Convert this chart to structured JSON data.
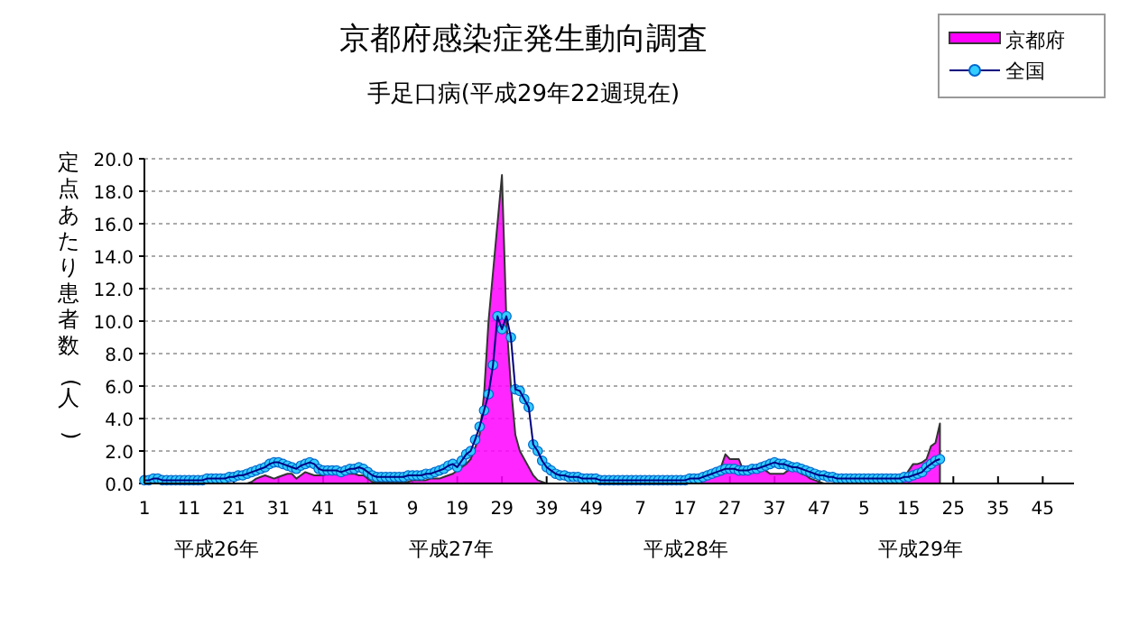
{
  "chart_data": {
    "type": "line",
    "title": "京都府感染症発生動向調査",
    "subtitle": "手足口病(平成29年22週現在)",
    "ylabel": "定点あたり患者数(人)",
    "categories": [
      "1",
      null,
      null,
      null,
      null,
      null,
      null,
      null,
      null,
      null,
      "11",
      null,
      null,
      null,
      null,
      null,
      null,
      null,
      null,
      null,
      "21",
      null,
      null,
      null,
      null,
      null,
      null,
      null,
      null,
      null,
      "31",
      null,
      null,
      null,
      null,
      null,
      null,
      null,
      null,
      null,
      "41",
      null,
      null,
      null,
      null,
      null,
      null,
      null,
      null,
      null,
      "51",
      null,
      null,
      null,
      null,
      null,
      null,
      null,
      null,
      null,
      "9",
      null,
      null,
      null,
      null,
      null,
      null,
      null,
      null,
      null,
      "19",
      null,
      null,
      null,
      null,
      null,
      null,
      null,
      null,
      null,
      "29",
      null,
      null,
      null,
      null,
      null,
      null,
      null,
      null,
      null,
      "39",
      null,
      null,
      null,
      null,
      null,
      null,
      null,
      null,
      null,
      "49",
      null,
      null,
      null,
      null,
      null,
      null,
      null,
      null,
      null,
      null,
      "7",
      null,
      null,
      null,
      null,
      null,
      null,
      null,
      null,
      null,
      "17",
      null,
      null,
      null,
      null,
      null,
      null,
      null,
      null,
      null,
      "27",
      null,
      null,
      null,
      null,
      null,
      null,
      null,
      null,
      null,
      "37",
      null,
      null,
      null,
      null,
      null,
      null,
      null,
      null,
      null,
      "47",
      null,
      null,
      null,
      null,
      null,
      null,
      null,
      null,
      null,
      "5",
      null,
      null,
      null,
      null,
      null,
      null,
      null,
      null,
      null,
      "15",
      null,
      null,
      null,
      null,
      null,
      null,
      null,
      null,
      null,
      "25",
      null,
      null,
      null,
      null,
      null,
      null,
      null,
      null,
      null,
      "35",
      null,
      null,
      null,
      null,
      null,
      null,
      null,
      null,
      null,
      "45",
      null,
      null,
      null,
      null,
      null,
      null,
      null
    ],
    "ylim": [
      0,
      20
    ],
    "yticks": [
      {
        "value": 0,
        "label": "0.0"
      },
      {
        "value": 2,
        "label": "2.0"
      },
      {
        "value": 4,
        "label": "4.0"
      },
      {
        "value": 6,
        "label": "6.0"
      },
      {
        "value": 8,
        "label": "8.0"
      },
      {
        "value": 10,
        "label": "10.0"
      },
      {
        "value": 12,
        "label": "12.0"
      },
      {
        "value": 14,
        "label": "14.0"
      },
      {
        "value": 16,
        "label": "16.0"
      },
      {
        "value": 18,
        "label": "18.0"
      },
      {
        "value": 20,
        "label": "20.0"
      }
    ],
    "grid": "y",
    "legend": "top right",
    "annotations": [
      "平成26年",
      "平成27年",
      "平成28年",
      "平成29年"
    ],
    "series": [
      {
        "name": "京都府",
        "type": "area",
        "color": "#ff00ff",
        "values": [
          0,
          0,
          0,
          0,
          0,
          0,
          0,
          0,
          0,
          0,
          0,
          0,
          0,
          0,
          0,
          0,
          0,
          0,
          0,
          0,
          0,
          0,
          0,
          0,
          0.1,
          0.3,
          0.4,
          0.5,
          0.4,
          0.3,
          0.4,
          0.5,
          0.6,
          0.6,
          0.3,
          0.5,
          0.7,
          0.6,
          0.5,
          0.5,
          0.5,
          0.6,
          0.6,
          0.6,
          0.6,
          0.6,
          0.6,
          0.6,
          0.5,
          0.5,
          0.3,
          0.1,
          0.1,
          0.1,
          0.1,
          0.1,
          0.1,
          0.1,
          0.1,
          0.1,
          0.2,
          0.2,
          0.2,
          0.2,
          0.3,
          0.3,
          0.3,
          0.4,
          0.5,
          0.6,
          0.8,
          1.0,
          1.2,
          1.5,
          2.2,
          3.0,
          5.5,
          10.0,
          13.0,
          16.0,
          19.0,
          10.0,
          6.0,
          3.0,
          2.0,
          1.5,
          1.0,
          0.5,
          0.2,
          0.1,
          0,
          0,
          0,
          0,
          0,
          0,
          0,
          0,
          0,
          0,
          0,
          0,
          0,
          0,
          0,
          0,
          0,
          0,
          0,
          0,
          0,
          0,
          0,
          0,
          0,
          0,
          0,
          0,
          0,
          0,
          0,
          0,
          0,
          0.1,
          0.1,
          0.2,
          0.3,
          0.4,
          0.5,
          1.0,
          1.8,
          1.5,
          1.5,
          1.5,
          0.8,
          0.8,
          0.8,
          0.9,
          1.2,
          0.8,
          0.6,
          0.6,
          0.6,
          0.6,
          0.8,
          1.0,
          0.8,
          0.6,
          0.5,
          0.3,
          0.2,
          0.1,
          0,
          0,
          0,
          0,
          0,
          0,
          0,
          0,
          0,
          0,
          0,
          0,
          0,
          0,
          0,
          0,
          0,
          0.1,
          0.3,
          0.8,
          1.2,
          1.2,
          1.3,
          1.5,
          2.3,
          2.5,
          3.7,
          null,
          null,
          null,
          null,
          null,
          null,
          null,
          null,
          null,
          null,
          null,
          null,
          null,
          null,
          null,
          null,
          null,
          null,
          null,
          null,
          null,
          null,
          null,
          null,
          null,
          null,
          null,
          null,
          null,
          null
        ]
      },
      {
        "name": "全国",
        "color": "#33ccff",
        "marker": "circle",
        "values": [
          0.2,
          0.2,
          0.3,
          0.3,
          0.2,
          0.2,
          0.2,
          0.2,
          0.2,
          0.2,
          0.2,
          0.2,
          0.2,
          0.2,
          0.3,
          0.3,
          0.3,
          0.3,
          0.3,
          0.4,
          0.4,
          0.5,
          0.5,
          0.6,
          0.7,
          0.8,
          0.9,
          1.0,
          1.2,
          1.3,
          1.3,
          1.2,
          1.1,
          1.0,
          0.9,
          1.1,
          1.2,
          1.3,
          1.2,
          0.9,
          0.8,
          0.8,
          0.8,
          0.8,
          0.7,
          0.8,
          0.9,
          0.9,
          1.0,
          0.9,
          0.7,
          0.5,
          0.4,
          0.4,
          0.4,
          0.4,
          0.4,
          0.4,
          0.4,
          0.5,
          0.5,
          0.5,
          0.5,
          0.6,
          0.6,
          0.7,
          0.8,
          0.9,
          1.1,
          1.2,
          1.0,
          1.4,
          1.8,
          2.0,
          2.7,
          3.5,
          4.5,
          5.5,
          7.3,
          10.3,
          9.5,
          10.3,
          9.0,
          5.8,
          5.7,
          5.2,
          4.7,
          2.4,
          2.0,
          1.4,
          1.0,
          0.8,
          0.6,
          0.5,
          0.5,
          0.4,
          0.4,
          0.4,
          0.3,
          0.3,
          0.3,
          0.3,
          0.2,
          0.2,
          0.2,
          0.2,
          0.2,
          0.2,
          0.2,
          0.2,
          0.2,
          0.2,
          0.2,
          0.2,
          0.2,
          0.2,
          0.2,
          0.2,
          0.2,
          0.2,
          0.2,
          0.2,
          0.3,
          0.3,
          0.3,
          0.4,
          0.5,
          0.6,
          0.7,
          0.8,
          0.9,
          0.9,
          0.9,
          0.8,
          0.8,
          0.8,
          0.9,
          0.9,
          1.0,
          1.1,
          1.2,
          1.3,
          1.2,
          1.2,
          1.1,
          1.0,
          1.0,
          0.9,
          0.8,
          0.7,
          0.6,
          0.5,
          0.5,
          0.4,
          0.4,
          0.3,
          0.3,
          0.3,
          0.3,
          0.3,
          0.3,
          0.3,
          0.3,
          0.3,
          0.3,
          0.3,
          0.3,
          0.3,
          0.3,
          0.3,
          0.4,
          0.4,
          0.5,
          0.6,
          0.7,
          1.0,
          1.2,
          1.4,
          1.5,
          null,
          null,
          null,
          null,
          null,
          null,
          null,
          null,
          null,
          null,
          null,
          null,
          null,
          null,
          null,
          null,
          null,
          null,
          null,
          null,
          null,
          null,
          null,
          null,
          null,
          null,
          null,
          null,
          null,
          null
        ]
      }
    ]
  }
}
